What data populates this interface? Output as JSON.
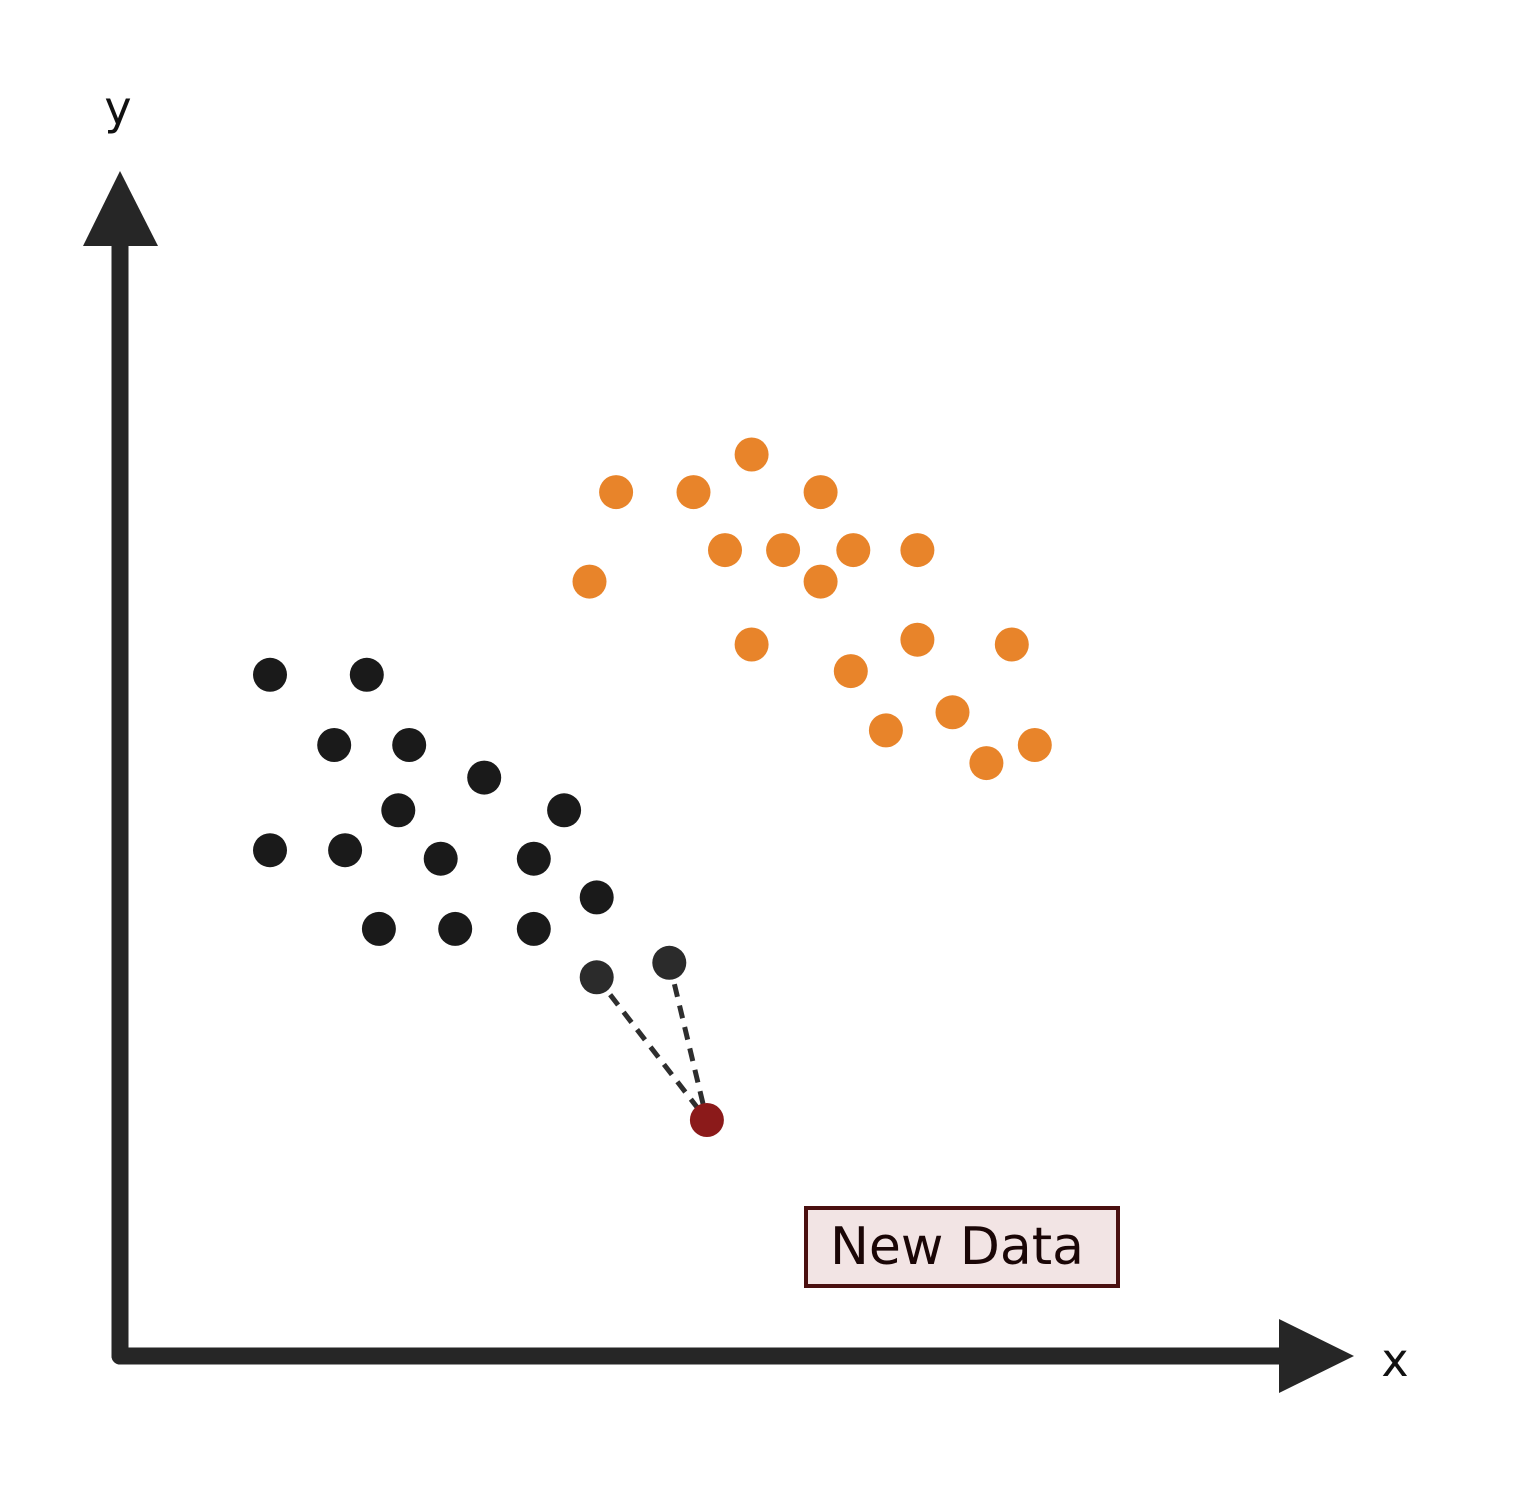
{
  "axes": {
    "x_label": "x",
    "y_label": "y",
    "color": "#262626"
  },
  "new_data": {
    "label": "New Data",
    "point_color": "#8b1a1a",
    "box_fill": "#f2e4e4",
    "box_stroke": "#4a1010",
    "text_color": "#1a0606"
  },
  "colors": {
    "class_a": "#e8842a",
    "class_b": "#1a1a1a",
    "class_b_highlight": "#2b2b2b",
    "connector": "#2e2e2e"
  },
  "chart_data": {
    "type": "scatter",
    "title": "",
    "xlabel": "x",
    "ylabel": "y",
    "xlim": [
      0,
      100
    ],
    "ylim": [
      0,
      100
    ],
    "series": [
      {
        "name": "class_a",
        "color": "#e8842a",
        "points": [
          [
            52.2,
            74.5
          ],
          [
            41.0,
            71.4
          ],
          [
            47.4,
            71.4
          ],
          [
            57.9,
            71.4
          ],
          [
            50.0,
            66.6
          ],
          [
            54.8,
            66.6
          ],
          [
            60.6,
            66.6
          ],
          [
            65.9,
            66.6
          ],
          [
            38.8,
            64.0
          ],
          [
            57.9,
            64.0
          ],
          [
            52.2,
            58.8
          ],
          [
            65.9,
            59.2
          ],
          [
            73.7,
            58.8
          ],
          [
            60.4,
            56.6
          ],
          [
            68.8,
            53.2
          ],
          [
            63.3,
            51.7
          ],
          [
            71.6,
            49.0
          ],
          [
            75.6,
            50.5
          ]
        ]
      },
      {
        "name": "class_b",
        "color": "#1a1a1a",
        "points": [
          [
            12.4,
            56.3
          ],
          [
            20.4,
            56.3
          ],
          [
            17.7,
            50.5
          ],
          [
            23.9,
            50.5
          ],
          [
            30.1,
            47.8
          ],
          [
            23.0,
            45.1
          ],
          [
            36.7,
            45.1
          ],
          [
            12.4,
            41.8
          ],
          [
            18.6,
            41.8
          ],
          [
            26.5,
            41.1
          ],
          [
            34.2,
            41.1
          ],
          [
            39.4,
            37.9
          ],
          [
            21.4,
            35.3
          ],
          [
            27.7,
            35.3
          ],
          [
            34.2,
            35.3
          ],
          [
            45.4,
            32.5
          ],
          [
            39.4,
            31.3
          ]
        ]
      },
      {
        "name": "new_data",
        "color": "#8b1a1a",
        "points": [
          [
            48.5,
            19.5
          ]
        ]
      }
    ],
    "nearest_neighbors": [
      [
        39.4,
        31.3
      ],
      [
        45.4,
        32.5
      ]
    ],
    "legend": "none"
  }
}
